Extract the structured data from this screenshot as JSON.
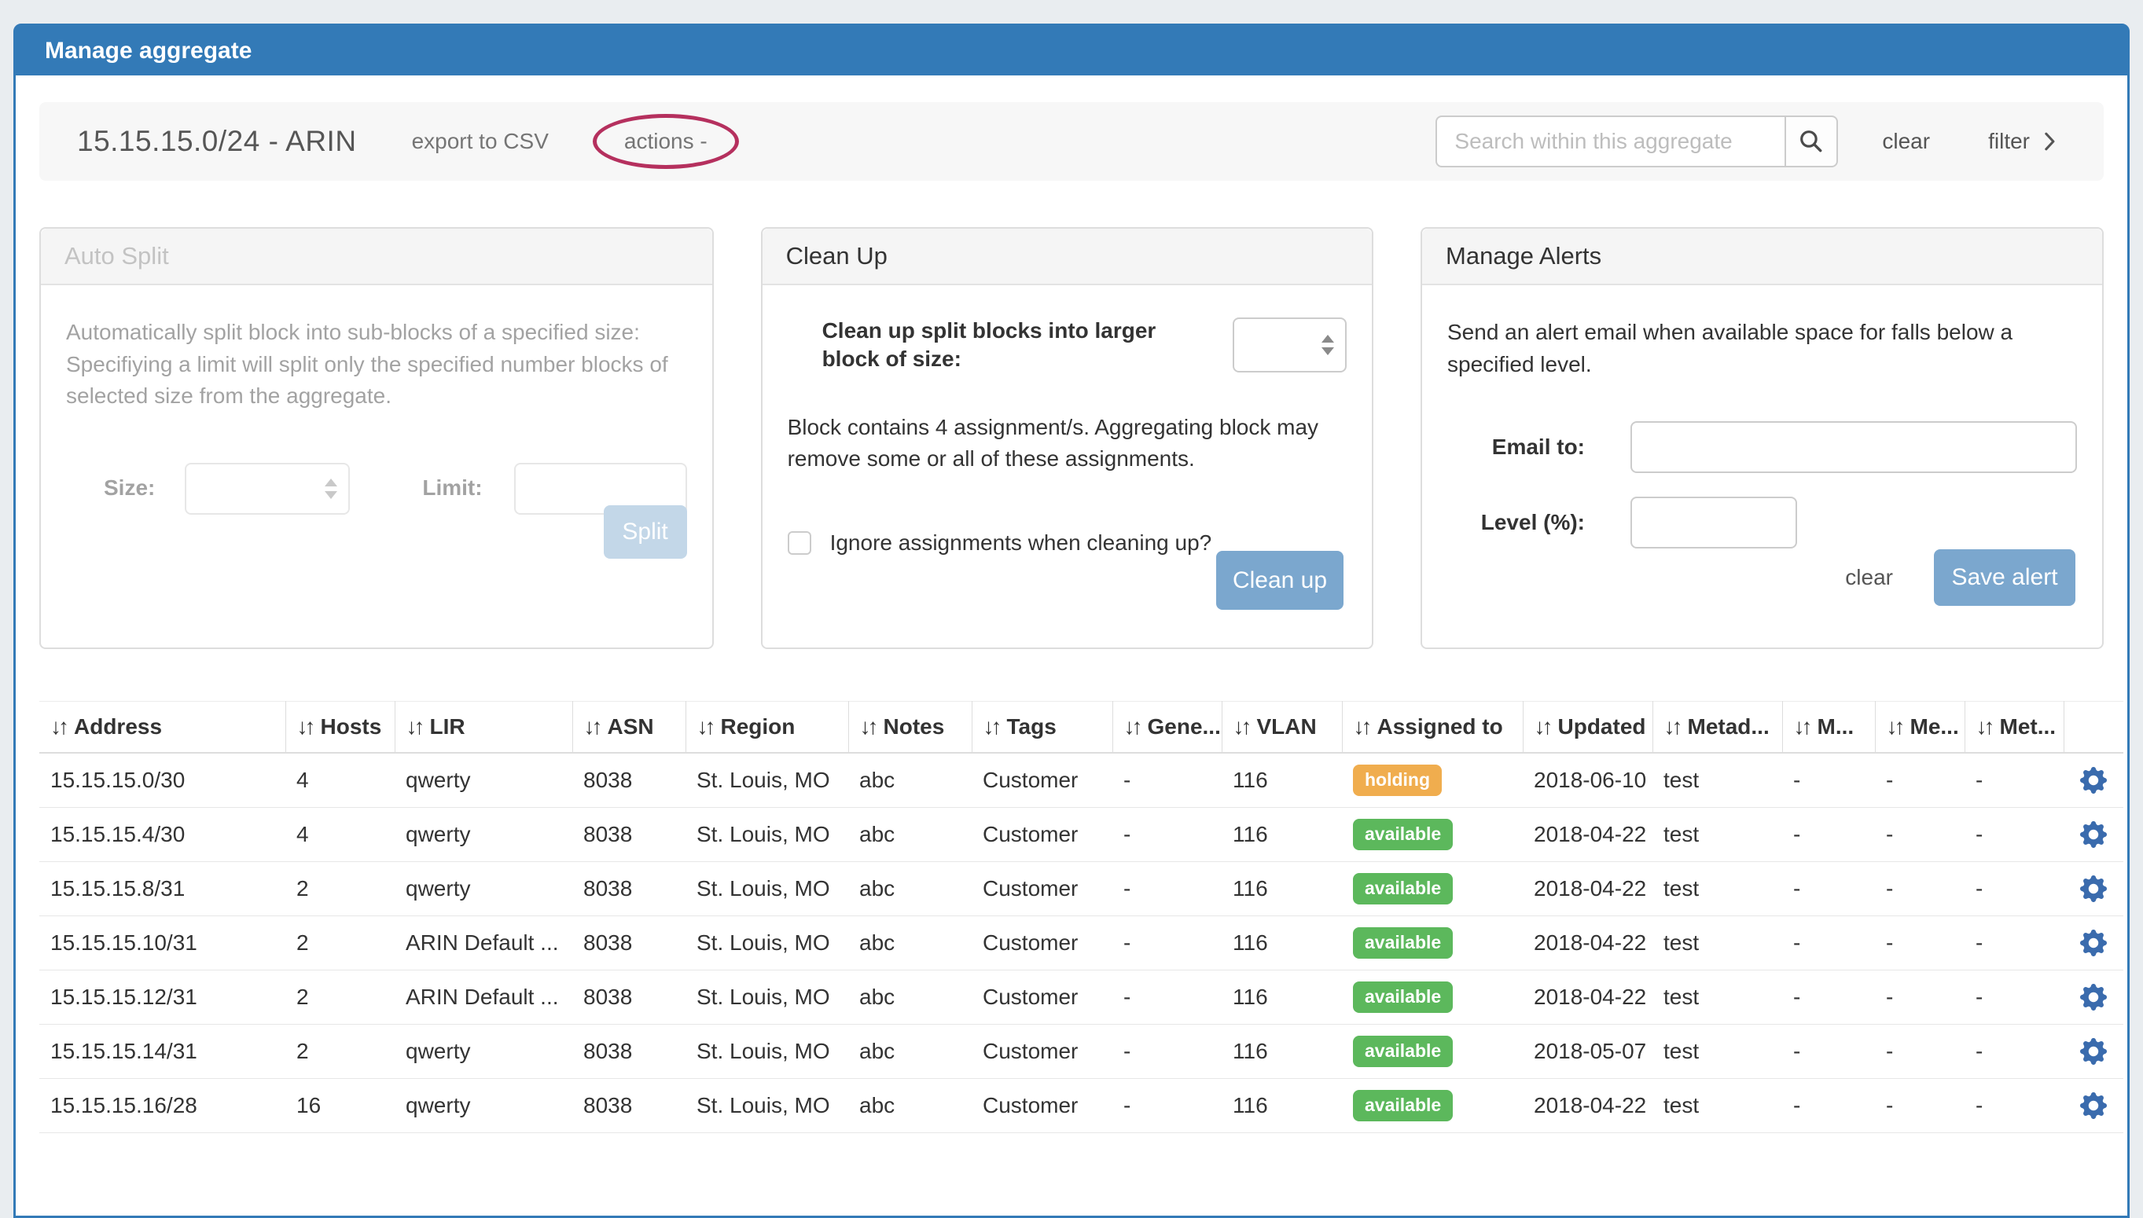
{
  "page": {
    "title": "Manage aggregate"
  },
  "toolbar": {
    "aggregate_title": "15.15.15.0/24 - ARIN",
    "export_csv_label": "export to CSV",
    "actions_label": "actions -",
    "search_placeholder": "Search within this aggregate",
    "search_value": "",
    "clear_label": "clear",
    "filter_label": "filter"
  },
  "panels": {
    "auto_split": {
      "title": "Auto Split",
      "description": "Automatically split block into sub-blocks of a specified size: Specifiying a limit will split only the specified number blocks of selected size from the aggregate.",
      "size_label": "Size:",
      "size_value": "",
      "limit_label": "Limit:",
      "limit_value": "",
      "split_button": "Split",
      "disabled": true
    },
    "clean_up": {
      "title": "Clean Up",
      "size_label": "Clean up split blocks into larger block of size:",
      "size_value": "",
      "info": "Block contains 4 assignment/s. Aggregating block may remove some or all of these assignments.",
      "checkbox_label": "Ignore assignments when cleaning up?",
      "checkbox_checked": false,
      "button": "Clean up"
    },
    "manage_alerts": {
      "title": "Manage Alerts",
      "description": "Send an alert email when available space for falls below a specified level.",
      "email_label": "Email to:",
      "email_value": "",
      "level_label": "Level (%):",
      "level_value": "",
      "clear_label": "clear",
      "save_button": "Save alert"
    }
  },
  "table": {
    "sort_glyph": "↓↑",
    "columns": [
      {
        "key": "address",
        "label": "Address"
      },
      {
        "key": "hosts",
        "label": "Hosts"
      },
      {
        "key": "lir",
        "label": "LIR"
      },
      {
        "key": "asn",
        "label": "ASN"
      },
      {
        "key": "region",
        "label": "Region"
      },
      {
        "key": "notes",
        "label": "Notes"
      },
      {
        "key": "tags",
        "label": "Tags"
      },
      {
        "key": "generic",
        "label": "Gene..."
      },
      {
        "key": "vlan",
        "label": "VLAN"
      },
      {
        "key": "status",
        "label": "Assigned to"
      },
      {
        "key": "updated",
        "label": "Updated"
      },
      {
        "key": "meta1",
        "label": "Metad..."
      },
      {
        "key": "meta2",
        "label": "M..."
      },
      {
        "key": "meta3",
        "label": "Me..."
      },
      {
        "key": "meta4",
        "label": "Met..."
      }
    ],
    "rows": [
      {
        "address": "15.15.15.0/30",
        "hosts": "4",
        "lir": "qwerty",
        "asn": "8038",
        "region": "St. Louis, MO",
        "notes": "abc",
        "tags": "Customer",
        "generic": "-",
        "vlan": "116",
        "status": "holding",
        "updated": "2018-06-10",
        "meta1": "test",
        "meta2": "-",
        "meta3": "-",
        "meta4": "-"
      },
      {
        "address": "15.15.15.4/30",
        "hosts": "4",
        "lir": "qwerty",
        "asn": "8038",
        "region": "St. Louis, MO",
        "notes": "abc",
        "tags": "Customer",
        "generic": "-",
        "vlan": "116",
        "status": "available",
        "updated": "2018-04-22",
        "meta1": "test",
        "meta2": "-",
        "meta3": "-",
        "meta4": "-"
      },
      {
        "address": "15.15.15.8/31",
        "hosts": "2",
        "lir": "qwerty",
        "asn": "8038",
        "region": "St. Louis, MO",
        "notes": "abc",
        "tags": "Customer",
        "generic": "-",
        "vlan": "116",
        "status": "available",
        "updated": "2018-04-22",
        "meta1": "test",
        "meta2": "-",
        "meta3": "-",
        "meta4": "-"
      },
      {
        "address": "15.15.15.10/31",
        "hosts": "2",
        "lir": "ARIN Default ...",
        "asn": "8038",
        "region": "St. Louis, MO",
        "notes": "abc",
        "tags": "Customer",
        "generic": "-",
        "vlan": "116",
        "status": "available",
        "updated": "2018-04-22",
        "meta1": "test",
        "meta2": "-",
        "meta3": "-",
        "meta4": "-"
      },
      {
        "address": "15.15.15.12/31",
        "hosts": "2",
        "lir": "ARIN Default ...",
        "asn": "8038",
        "region": "St. Louis, MO",
        "notes": "abc",
        "tags": "Customer",
        "generic": "-",
        "vlan": "116",
        "status": "available",
        "updated": "2018-04-22",
        "meta1": "test",
        "meta2": "-",
        "meta3": "-",
        "meta4": "-"
      },
      {
        "address": "15.15.15.14/31",
        "hosts": "2",
        "lir": "qwerty",
        "asn": "8038",
        "region": "St. Louis, MO",
        "notes": "abc",
        "tags": "Customer",
        "generic": "-",
        "vlan": "116",
        "status": "available",
        "updated": "2018-05-07",
        "meta1": "test",
        "meta2": "-",
        "meta3": "-",
        "meta4": "-"
      },
      {
        "address": "15.15.15.16/28",
        "hosts": "16",
        "lir": "qwerty",
        "asn": "8038",
        "region": "St. Louis, MO",
        "notes": "abc",
        "tags": "Customer",
        "generic": "-",
        "vlan": "116",
        "status": "available",
        "updated": "2018-04-22",
        "meta1": "test",
        "meta2": "-",
        "meta3": "-",
        "meta4": "-"
      }
    ]
  },
  "colors": {
    "header_blue": "#337ab7",
    "button_blue": "#7ba7ce",
    "annotation_ellipse": "#b5305e",
    "gear_blue": "#3a6bad",
    "badge_holding": "#f0ad4e",
    "badge_available": "#5cb85c"
  }
}
